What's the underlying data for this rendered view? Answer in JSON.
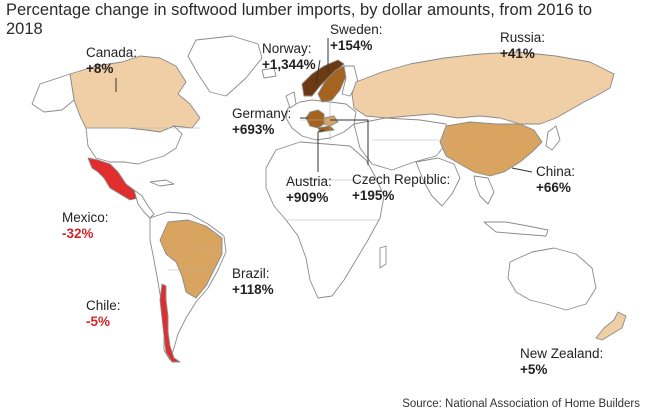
{
  "title": "Percentage change in softwood lumber imports, by dollar amounts, from 2016 to 2018",
  "source": "Source: National Association of Home Builders",
  "colors": {
    "increase_light": "#f0cfa6",
    "increase_mid": "#d8a45f",
    "increase_dark": "#a5631f",
    "increase_darkest": "#6b3a12",
    "decrease": "#e02e2e",
    "land_outline": "#8a8a8a"
  },
  "countries": [
    {
      "id": "canada",
      "name": "Canada:",
      "value": "+8%",
      "sign": "increase"
    },
    {
      "id": "norway",
      "name": "Norway:",
      "value": "+1,344%",
      "sign": "increase"
    },
    {
      "id": "sweden",
      "name": "Sweden:",
      "value": "+154%",
      "sign": "increase"
    },
    {
      "id": "russia",
      "name": "Russia:",
      "value": "+41%",
      "sign": "increase"
    },
    {
      "id": "germany",
      "name": "Germany:",
      "value": "+693%",
      "sign": "increase"
    },
    {
      "id": "austria",
      "name": "Austria:",
      "value": "+909%",
      "sign": "increase"
    },
    {
      "id": "czech",
      "name": "Czech Republic:",
      "value": "+195%",
      "sign": "increase"
    },
    {
      "id": "china",
      "name": "China:",
      "value": "+66%",
      "sign": "increase"
    },
    {
      "id": "mexico",
      "name": "Mexico:",
      "value": "-32%",
      "sign": "decrease"
    },
    {
      "id": "brazil",
      "name": "Brazil:",
      "value": "+118%",
      "sign": "increase"
    },
    {
      "id": "chile",
      "name": "Chile:",
      "value": "-5%",
      "sign": "decrease"
    },
    {
      "id": "newzealand",
      "name": "New Zealand:",
      "value": "+5%",
      "sign": "increase"
    }
  ]
}
